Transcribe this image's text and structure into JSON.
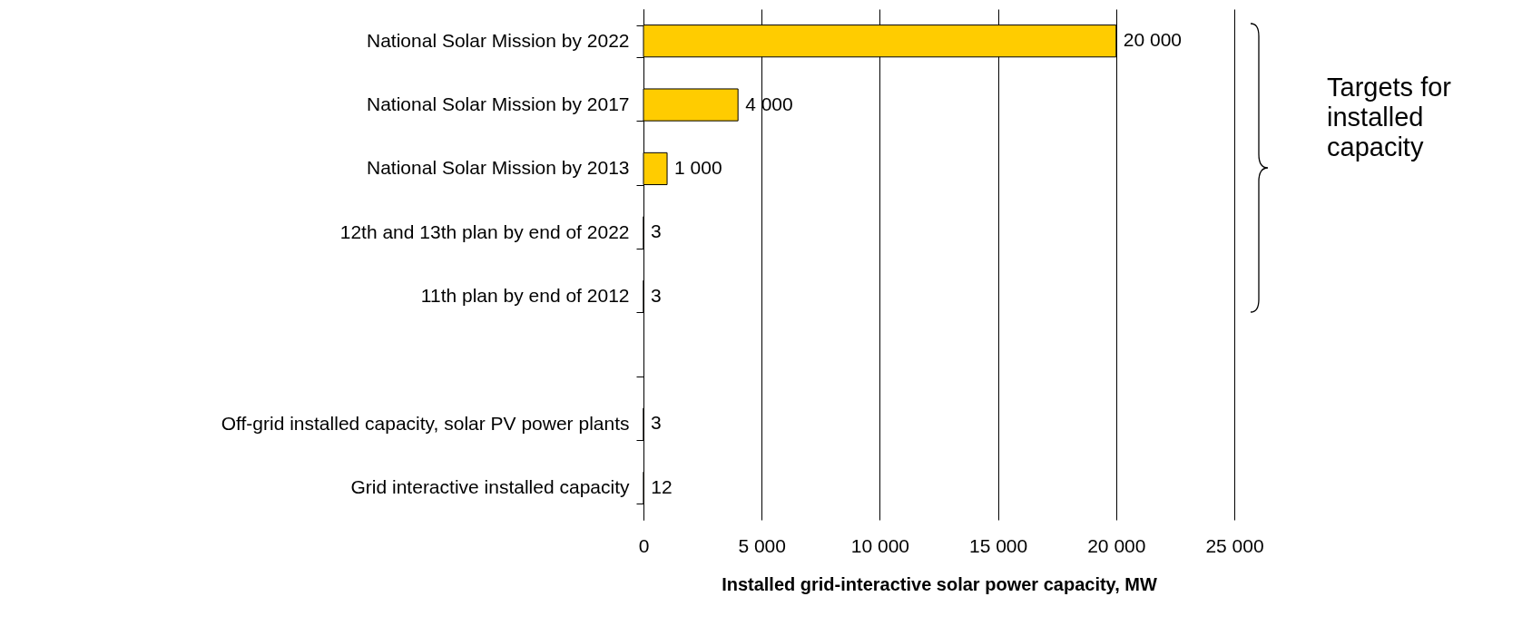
{
  "chart_data": {
    "type": "bar",
    "orientation": "horizontal",
    "categories": [
      "National Solar Mission by 2022",
      "National Solar Mission by 2017",
      "National Solar Mission by 2013",
      "12th and 13th plan by end of 2022",
      "11th plan by end of 2012",
      null,
      "Off-grid installed capacity, solar PV power plants",
      "Grid interactive installed capacity"
    ],
    "values": [
      20000,
      4000,
      1000,
      3,
      3,
      null,
      3,
      12
    ],
    "value_labels": [
      "20 000",
      "4 000",
      "1 000",
      "3",
      "3",
      null,
      "3",
      "12"
    ],
    "color": "#ffcc00",
    "xlim": [
      0,
      25000
    ],
    "xticks": [
      0,
      {
        "value": 5000,
        "label": "5 000"
      },
      {
        "value": 10000,
        "label": "10 000"
      },
      {
        "value": 15000,
        "label": "15 000"
      },
      {
        "value": 20000,
        "label": "20 000"
      },
      {
        "value": 25000,
        "label": "25 000"
      }
    ],
    "xlabel": "Installed grid-interactive solar power capacity, MW",
    "grid": "x",
    "annotations": [
      "Targets for installed capacity"
    ]
  }
}
